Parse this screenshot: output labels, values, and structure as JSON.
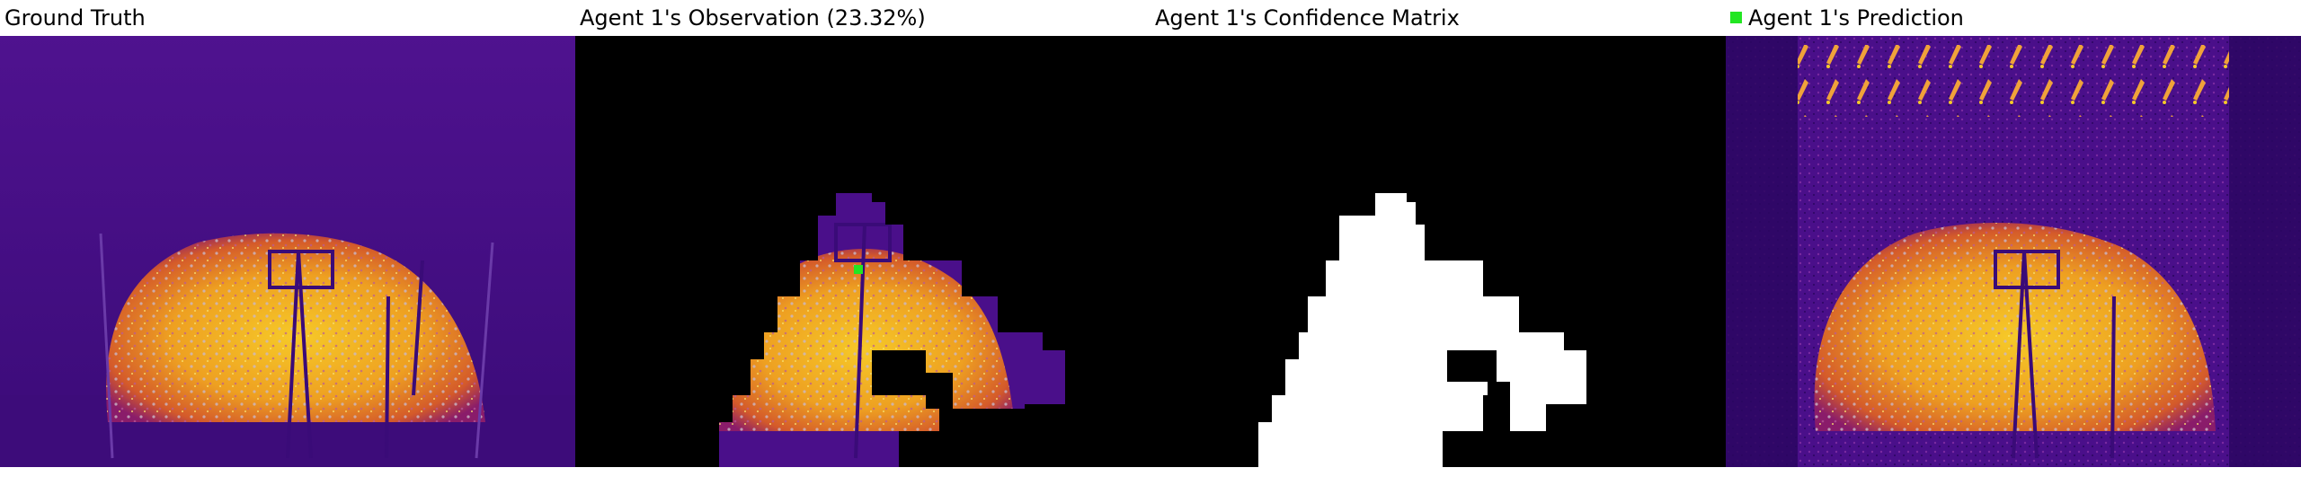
{
  "panels": [
    {
      "title": "Ground Truth"
    },
    {
      "title": "Agent 1's Observation (23.32%)"
    },
    {
      "title": "Agent 1's Confidence Matrix"
    },
    {
      "title": "Agent 1's Prediction",
      "legend_color": "#22e622"
    }
  ],
  "colors": {
    "background_purple": "#4a0f8a",
    "deep_purple": "#2a0660",
    "fire_orange": "#e8731c",
    "fire_yellow": "#f6c928",
    "hot_white": "#c9b8c8",
    "mask_black": "#000000",
    "mask_white": "#ffffff",
    "marker_green": "#22e622"
  }
}
